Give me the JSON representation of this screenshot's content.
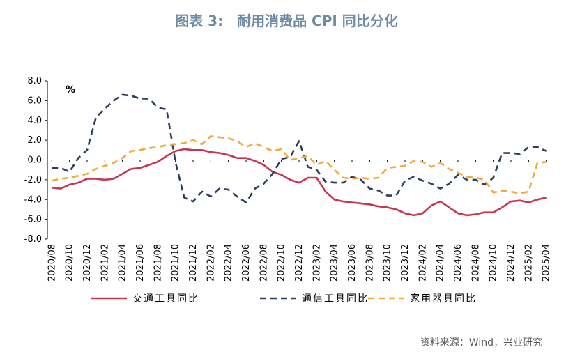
{
  "title": "图表 3:　耐用消费品 CPI 同比分化",
  "source": "资料来源：Wind，兴业研究",
  "chart_data": {
    "type": "line",
    "unit_label": "%",
    "ylim": [
      -8,
      8
    ],
    "y_ticks": [
      "8.0",
      "6.0",
      "4.0",
      "2.0",
      "0.0",
      "-2.0",
      "-4.0",
      "-6.0",
      "-8.0"
    ],
    "x_tick_labels": [
      "2020/08",
      "2020/10",
      "2020/12",
      "2021/02",
      "2021/04",
      "2021/06",
      "2021/08",
      "2021/10",
      "2021/12",
      "2022/02",
      "2022/04",
      "2022/06",
      "2022/08",
      "2022/10",
      "2022/12",
      "2023/02",
      "2023/04",
      "2023/06",
      "2023/08",
      "2023/10",
      "2023/12",
      "2024/02",
      "2024/04",
      "2024/06",
      "2024/08",
      "2024/10",
      "2024/12",
      "2025/02",
      "2025/04"
    ],
    "x": [
      "2020/08",
      "2020/09",
      "2020/10",
      "2020/11",
      "2020/12",
      "2021/01",
      "2021/02",
      "2021/03",
      "2021/04",
      "2021/05",
      "2021/06",
      "2021/07",
      "2021/08",
      "2021/09",
      "2021/10",
      "2021/11",
      "2021/12",
      "2022/01",
      "2022/02",
      "2022/03",
      "2022/04",
      "2022/05",
      "2022/06",
      "2022/07",
      "2022/08",
      "2022/09",
      "2022/10",
      "2022/11",
      "2022/12",
      "2023/01",
      "2023/02",
      "2023/03",
      "2023/04",
      "2023/05",
      "2023/06",
      "2023/07",
      "2023/08",
      "2023/09",
      "2023/10",
      "2023/11",
      "2023/12",
      "2024/01",
      "2024/02",
      "2024/03",
      "2024/04",
      "2024/05",
      "2024/06",
      "2024/07",
      "2024/08",
      "2024/09",
      "2024/10",
      "2024/11",
      "2024/12",
      "2025/01",
      "2025/02",
      "2025/03",
      "2025/04"
    ],
    "series": [
      {
        "name": "交通工具同比",
        "color": "#c8374f",
        "dash": "solid",
        "values": [
          -2.8,
          -2.9,
          -2.5,
          -2.3,
          -1.9,
          -1.9,
          -2.0,
          -1.9,
          -1.4,
          -0.9,
          -0.8,
          -0.5,
          -0.2,
          0.4,
          0.9,
          1.1,
          1.0,
          1.0,
          0.8,
          0.7,
          0.5,
          0.2,
          0.2,
          -0.1,
          -0.5,
          -1.2,
          -1.5,
          -2.0,
          -2.3,
          -1.8,
          -1.8,
          -3.2,
          -4.0,
          -4.2,
          -4.3,
          -4.4,
          -4.5,
          -4.7,
          -4.8,
          -5.0,
          -5.4,
          -5.6,
          -5.4,
          -4.6,
          -4.2,
          -4.8,
          -5.4,
          -5.6,
          -5.5,
          -5.3,
          -5.3,
          -4.8,
          -4.2,
          -4.1,
          -4.3,
          -4.0,
          -3.8
        ]
      },
      {
        "name": "通信工具同比",
        "color": "#2b3f5c",
        "dash": "dashed",
        "values": [
          -0.8,
          -0.8,
          -1.2,
          0.2,
          1.0,
          4.3,
          5.2,
          6.0,
          6.6,
          6.5,
          6.2,
          6.2,
          5.3,
          5.1,
          -0.2,
          -3.8,
          -4.2,
          -3.2,
          -3.7,
          -2.9,
          -3.0,
          -3.7,
          -4.3,
          -2.9,
          -2.4,
          -1.4,
          0.1,
          0.3,
          1.9,
          -0.7,
          -1.0,
          -2.2,
          -2.3,
          -2.3,
          -1.7,
          -2.0,
          -2.9,
          -3.1,
          -3.6,
          -3.6,
          -2.1,
          -1.7,
          -2.1,
          -2.4,
          -2.9,
          -2.4,
          -1.5,
          -2.0,
          -2.0,
          -2.5,
          -1.8,
          0.7,
          0.7,
          0.6,
          1.3,
          1.3,
          0.9
        ]
      },
      {
        "name": "家用器具同比",
        "color": "#f2a93b",
        "dash": "dashed",
        "values": [
          -2.1,
          -1.9,
          -1.8,
          -1.6,
          -1.4,
          -0.9,
          -0.6,
          -0.3,
          0.2,
          0.9,
          1.0,
          1.2,
          1.3,
          1.5,
          1.6,
          1.7,
          2.0,
          1.6,
          2.4,
          2.3,
          2.2,
          1.9,
          1.3,
          1.7,
          1.3,
          0.9,
          1.1,
          0.0,
          0.2,
          0.4,
          -0.5,
          -0.1,
          -1.0,
          -1.8,
          -1.9,
          -1.8,
          -1.9,
          -1.8,
          -0.8,
          -0.7,
          -0.6,
          -0.1,
          -0.2,
          -0.7,
          -0.3,
          -0.9,
          -1.3,
          -1.7,
          -1.8,
          -2.0,
          -3.3,
          -3.1,
          -3.2,
          -3.4,
          -3.2,
          -0.3,
          -0.2
        ]
      }
    ]
  }
}
